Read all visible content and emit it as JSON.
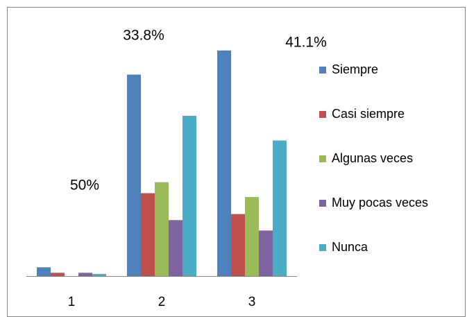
{
  "chart_data": {
    "type": "bar",
    "categories": [
      "1",
      "2",
      "3"
    ],
    "series": [
      {
        "name": "Siempre",
        "color": "#4f81bd",
        "values": [
          1.6,
          36.7,
          41.1
        ]
      },
      {
        "name": "Casi siempre",
        "color": "#c0504d",
        "values": [
          0.6,
          15.1,
          11.3
        ]
      },
      {
        "name": "Algunas veces",
        "color": "#9bbb59",
        "values": [
          0,
          17.1,
          14.4
        ]
      },
      {
        "name": "Muy pocas veces",
        "color": "#8064a2",
        "values": [
          0.6,
          10.2,
          8.3
        ]
      },
      {
        "name": "Nunca",
        "color": "#4bacc6",
        "values": [
          0.4,
          29.2,
          24.7
        ]
      }
    ],
    "annotations": [
      "33.8%",
      "41.1%",
      "50%"
    ],
    "ylim": [
      0,
      46.5
    ],
    "legend": "right"
  }
}
